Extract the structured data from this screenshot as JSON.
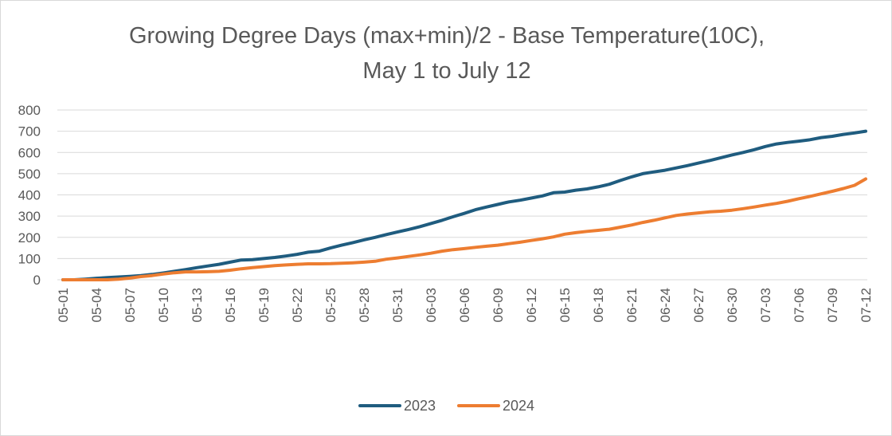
{
  "chart_data": {
    "type": "line",
    "title_line1": "Growing Degree Days (max+min)/2 - Base Temperature(10C),",
    "title_line2": "May 1  to July 12",
    "xlabel": "",
    "ylabel": "",
    "ylim": [
      0,
      800
    ],
    "yticks": [
      0,
      100,
      200,
      300,
      400,
      500,
      600,
      700,
      800
    ],
    "grid": true,
    "legend_position": "bottom",
    "x": [
      "05-01",
      "05-02",
      "05-03",
      "05-04",
      "05-05",
      "05-06",
      "05-07",
      "05-08",
      "05-09",
      "05-10",
      "05-11",
      "05-12",
      "05-13",
      "05-14",
      "05-15",
      "05-16",
      "05-17",
      "05-18",
      "05-19",
      "05-20",
      "05-21",
      "05-22",
      "05-23",
      "05-24",
      "05-25",
      "05-26",
      "05-27",
      "05-28",
      "05-29",
      "05-30",
      "05-31",
      "06-01",
      "06-02",
      "06-03",
      "06-04",
      "06-05",
      "06-06",
      "06-07",
      "06-08",
      "06-09",
      "06-10",
      "06-11",
      "06-12",
      "06-13",
      "06-14",
      "06-15",
      "06-16",
      "06-17",
      "06-18",
      "06-19",
      "06-20",
      "06-21",
      "06-22",
      "06-23",
      "06-24",
      "06-25",
      "06-26",
      "06-27",
      "06-28",
      "06-29",
      "06-30",
      "07-01",
      "07-02",
      "07-03",
      "07-04",
      "07-05",
      "07-06",
      "07-07",
      "07-08",
      "07-09",
      "07-10",
      "07-11",
      "07-12"
    ],
    "xtick_labels": [
      "05-01",
      "05-04",
      "05-07",
      "05-10",
      "05-13",
      "05-16",
      "05-19",
      "05-22",
      "05-25",
      "05-28",
      "05-31",
      "06-03",
      "06-06",
      "06-09",
      "06-12",
      "06-15",
      "06-18",
      "06-21",
      "06-24",
      "06-27",
      "06-30",
      "07-03",
      "07-06",
      "07-09",
      "07-12"
    ],
    "series": [
      {
        "name": "2023",
        "color": "#1f5c7f",
        "values": [
          0,
          0,
          3,
          7,
          10,
          13,
          16,
          20,
          25,
          32,
          40,
          48,
          57,
          65,
          73,
          83,
          93,
          95,
          100,
          105,
          112,
          120,
          130,
          135,
          150,
          163,
          175,
          188,
          200,
          213,
          225,
          237,
          250,
          265,
          280,
          297,
          313,
          330,
          343,
          355,
          367,
          375,
          385,
          395,
          410,
          413,
          422,
          428,
          438,
          450,
          468,
          485,
          500,
          508,
          516,
          527,
          538,
          550,
          562,
          575,
          588,
          600,
          613,
          628,
          640,
          647,
          653,
          660,
          670,
          676,
          685,
          692,
          700
        ]
      },
      {
        "name": "2024",
        "color": "#ed7d31",
        "values": [
          0,
          0,
          0,
          0,
          0,
          3,
          8,
          15,
          20,
          27,
          33,
          37,
          37,
          38,
          40,
          45,
          52,
          57,
          62,
          67,
          70,
          73,
          75,
          75,
          76,
          78,
          80,
          83,
          87,
          97,
          103,
          110,
          117,
          125,
          135,
          142,
          147,
          153,
          158,
          163,
          170,
          177,
          185,
          193,
          202,
          215,
          222,
          228,
          233,
          238,
          248,
          258,
          270,
          280,
          292,
          303,
          310,
          315,
          320,
          323,
          328,
          335,
          343,
          352,
          360,
          370,
          382,
          393,
          405,
          417,
          430,
          445,
          475
        ]
      }
    ]
  }
}
